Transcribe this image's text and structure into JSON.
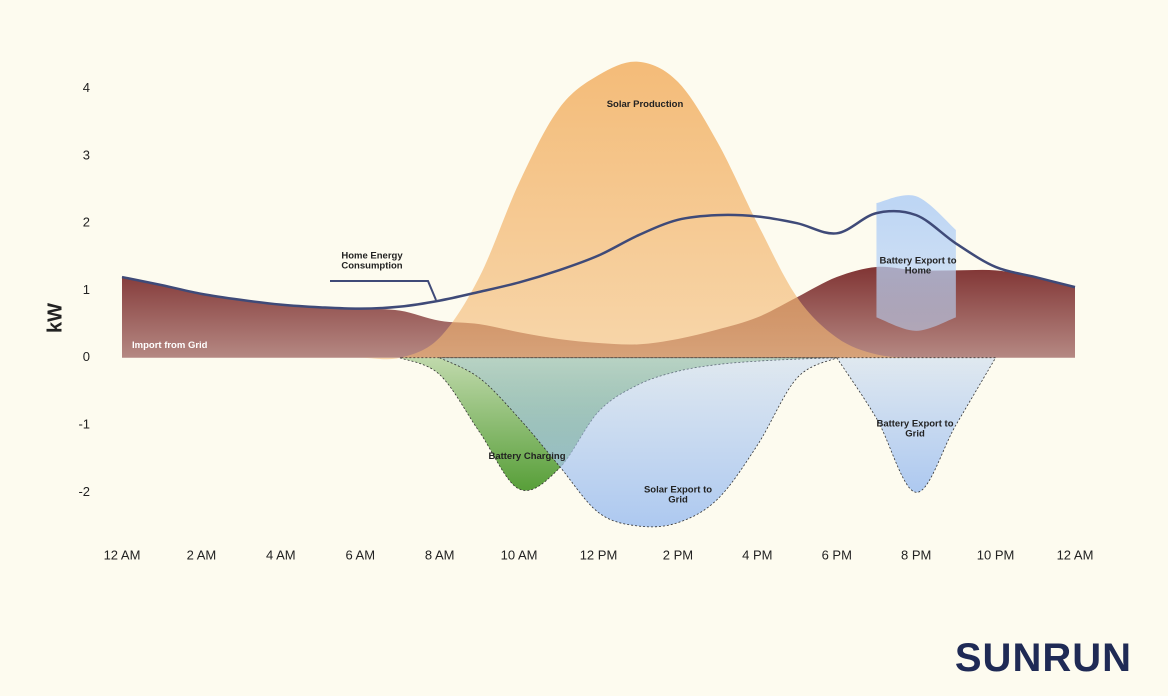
{
  "chart_data": {
    "type": "area",
    "y_label": "kW",
    "x": [
      0,
      1,
      2,
      3,
      4,
      5,
      6,
      7,
      8,
      9,
      10,
      11,
      12,
      13,
      14,
      15,
      16,
      17,
      18,
      19,
      20,
      21,
      22,
      23,
      24
    ],
    "xlim": [
      0,
      24
    ],
    "xticks": [
      {
        "value": 0,
        "label": "12 AM"
      },
      {
        "value": 2,
        "label": "2 AM"
      },
      {
        "value": 4,
        "label": "4 AM"
      },
      {
        "value": 6,
        "label": "6 AM"
      },
      {
        "value": 8,
        "label": "8 AM"
      },
      {
        "value": 10,
        "label": "10 AM"
      },
      {
        "value": 12,
        "label": "12 PM"
      },
      {
        "value": 14,
        "label": "2 PM"
      },
      {
        "value": 16,
        "label": "4 PM"
      },
      {
        "value": 18,
        "label": "6 PM"
      },
      {
        "value": 20,
        "label": "8 PM"
      },
      {
        "value": 22,
        "label": "10 PM"
      },
      {
        "value": 24,
        "label": "12 AM"
      }
    ],
    "ylim": [
      -2.5,
      4.5
    ],
    "yticks": [
      -2,
      -1,
      0,
      1,
      2,
      3,
      4
    ],
    "series": [
      {
        "name": "Import from Grid",
        "kind": "area",
        "color": "#7a2a2a",
        "values": [
          1.2,
          1.08,
          0.95,
          0.86,
          0.79,
          0.75,
          0.73,
          0.7,
          0.55,
          0.5,
          0.38,
          0.28,
          0.22,
          0.2,
          0.28,
          0.42,
          0.6,
          0.9,
          1.2,
          1.35,
          1.3,
          1.3,
          1.3,
          1.2,
          1.05
        ]
      },
      {
        "name": "Solar Production",
        "kind": "area",
        "color": "#f3b872",
        "values": [
          0,
          0,
          0,
          0,
          0,
          0,
          0,
          0,
          0.3,
          1.2,
          2.6,
          3.7,
          4.2,
          4.4,
          4.1,
          3.2,
          2.0,
          0.9,
          0.3,
          0.05,
          0,
          0,
          0,
          0,
          0
        ]
      },
      {
        "name": "Battery Charging",
        "kind": "area",
        "color": "#4f9a2f",
        "values": [
          null,
          null,
          null,
          null,
          null,
          null,
          null,
          0,
          -0.25,
          -1.1,
          -1.95,
          -1.65,
          -0.8,
          -0.4,
          -0.2,
          -0.1,
          -0.05,
          -0.02,
          0,
          null,
          null,
          null,
          null,
          null,
          null
        ]
      },
      {
        "name": "Solar Export to Grid",
        "kind": "area",
        "color": "#a9c6f0",
        "values": [
          null,
          null,
          null,
          null,
          null,
          null,
          null,
          null,
          0,
          -0.3,
          -0.9,
          -1.6,
          -2.3,
          -2.5,
          -2.45,
          -2.1,
          -1.3,
          -0.3,
          0,
          null,
          null,
          null,
          null,
          null,
          null
        ]
      },
      {
        "name": "Battery Export to Home",
        "kind": "range",
        "color": "#b9d3f5",
        "values": [
          null,
          null,
          null,
          null,
          null,
          null,
          null,
          null,
          null,
          null,
          null,
          null,
          null,
          null,
          null,
          null,
          null,
          null,
          null,
          2.3,
          2.4,
          1.9,
          null,
          null,
          null
        ],
        "base": [
          null,
          null,
          null,
          null,
          null,
          null,
          null,
          null,
          null,
          null,
          null,
          null,
          null,
          null,
          null,
          null,
          null,
          null,
          null,
          0.6,
          0.4,
          0.6,
          null,
          null,
          null
        ]
      },
      {
        "name": "Battery Export to Grid",
        "kind": "area",
        "color": "#a9c6f0",
        "values": [
          null,
          null,
          null,
          null,
          null,
          null,
          null,
          null,
          null,
          null,
          null,
          null,
          null,
          null,
          null,
          null,
          null,
          null,
          0,
          -0.9,
          -2.0,
          -1.0,
          0,
          null,
          null
        ]
      },
      {
        "name": "Home Energy Consumption",
        "kind": "line",
        "color": "#3f4a78",
        "values": [
          1.2,
          1.08,
          0.95,
          0.86,
          0.79,
          0.75,
          0.73,
          0.76,
          0.85,
          0.98,
          1.12,
          1.3,
          1.52,
          1.82,
          2.05,
          2.12,
          2.1,
          2.0,
          1.85,
          2.15,
          2.12,
          1.7,
          1.35,
          1.2,
          1.05
        ]
      }
    ]
  },
  "logo": "SUNRUN"
}
